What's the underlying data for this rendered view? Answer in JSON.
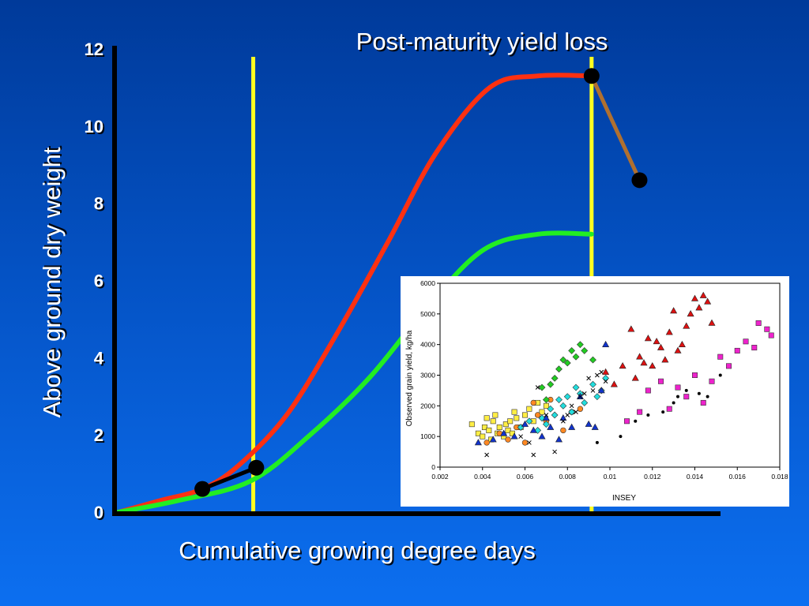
{
  "slide": {
    "title": "Post-maturity yield loss",
    "xlabel": "Cumulative growing degree days",
    "ylabel": "Above ground dry weight"
  },
  "colors": {
    "red_curve": "#ff3010",
    "green_curve": "#22ee22",
    "yellow_line": "#ffff20",
    "loss_line": "#b07030",
    "axis": "#000000",
    "text": "#ffffff"
  },
  "chart_data": [
    {
      "type": "line",
      "title": "Post-maturity yield loss",
      "xlabel": "Cumulative growing degree days",
      "ylabel": "Above ground dry weight",
      "ylim": [
        0,
        12
      ],
      "yticks": [
        0,
        2,
        4,
        6,
        8,
        10,
        12
      ],
      "xlim": [
        0,
        100
      ],
      "grid": false,
      "series": [
        {
          "color": "#ff3010",
          "points": [
            [
              0,
              0
            ],
            [
              7,
              0.3
            ],
            [
              14,
              0.6
            ],
            [
              20,
              1.2
            ],
            [
              28,
              2.5
            ],
            [
              36,
              4.5
            ],
            [
              45,
              7.0
            ],
            [
              53,
              9.3
            ],
            [
              62,
              11.0
            ],
            [
              70,
              11.3
            ],
            [
              79,
              11.3
            ]
          ]
        },
        {
          "color": "#22ee22",
          "points": [
            [
              0,
              0
            ],
            [
              10,
              0.3
            ],
            [
              22,
              0.8
            ],
            [
              32,
              2.0
            ],
            [
              42,
              3.5
            ],
            [
              52,
              5.4
            ],
            [
              61,
              6.8
            ],
            [
              70,
              7.2
            ],
            [
              79,
              7.2
            ]
          ]
        },
        {
          "color": "#b07030",
          "points": [
            [
              79,
              11.3
            ],
            [
              87,
              8.6
            ]
          ]
        },
        {
          "color": "#000000",
          "points": [
            [
              14,
              0.6
            ],
            [
              23,
              1.15
            ]
          ]
        }
      ],
      "vertical_lines_x": [
        22.5,
        79
      ],
      "markers": [
        [
          14,
          0.6
        ],
        [
          23,
          1.15
        ],
        [
          79,
          11.3
        ],
        [
          87,
          8.6
        ]
      ]
    },
    {
      "type": "scatter",
      "xlabel": "INSEY",
      "ylabel": "Observed grain yield, kg/ha",
      "xlim": [
        0.002,
        0.018
      ],
      "ylim": [
        0,
        6000
      ],
      "xticks": [
        "0.002",
        "0.004",
        "0.006",
        "0.008",
        "0.01",
        "0.012",
        "0.014",
        "0.016",
        "0.018"
      ],
      "yticks": [
        "0",
        "1000",
        "2000",
        "3000",
        "4000",
        "5000",
        "6000"
      ],
      "grid": false,
      "series": [
        {
          "marker": "square",
          "color": "#ffee44",
          "points": [
            [
              0.0035,
              1400
            ],
            [
              0.0038,
              1100
            ],
            [
              0.004,
              1000
            ],
            [
              0.0041,
              1300
            ],
            [
              0.0042,
              1600
            ],
            [
              0.0043,
              1200
            ],
            [
              0.0044,
              900
            ],
            [
              0.0045,
              1500
            ],
            [
              0.0046,
              1700
            ],
            [
              0.0047,
              1100
            ],
            [
              0.0048,
              1300
            ],
            [
              0.005,
              1000
            ],
            [
              0.0051,
              1400
            ],
            [
              0.0052,
              1200
            ],
            [
              0.0053,
              1500
            ],
            [
              0.0054,
              1100
            ],
            [
              0.0055,
              1800
            ],
            [
              0.0056,
              1600
            ],
            [
              0.0058,
              1300
            ],
            [
              0.006,
              1700
            ],
            [
              0.0062,
              1900
            ],
            [
              0.0064,
              1500
            ],
            [
              0.0066,
              2100
            ],
            [
              0.0068,
              1800
            ],
            [
              0.007,
              2000
            ]
          ]
        },
        {
          "marker": "circle",
          "color": "#ff8822",
          "points": [
            [
              0.0042,
              800
            ],
            [
              0.0048,
              1100
            ],
            [
              0.0052,
              900
            ],
            [
              0.0056,
              1300
            ],
            [
              0.006,
              800
            ],
            [
              0.0064,
              2100
            ],
            [
              0.0066,
              1700
            ],
            [
              0.007,
              1500
            ],
            [
              0.0072,
              2200
            ],
            [
              0.0078,
              1200
            ],
            [
              0.0082,
              1800
            ],
            [
              0.0086,
              1900
            ]
          ]
        },
        {
          "marker": "diamond",
          "color": "#22cc22",
          "points": [
            [
              0.0068,
              2600
            ],
            [
              0.007,
              2200
            ],
            [
              0.0072,
              2700
            ],
            [
              0.0074,
              2900
            ],
            [
              0.0076,
              3200
            ],
            [
              0.0078,
              3500
            ],
            [
              0.008,
              3400
            ],
            [
              0.0082,
              3800
            ],
            [
              0.0084,
              3600
            ],
            [
              0.0086,
              4000
            ],
            [
              0.0088,
              3800
            ],
            [
              0.0092,
              3500
            ]
          ]
        },
        {
          "marker": "diamond",
          "color": "#22dddd",
          "points": [
            [
              0.0058,
              1300
            ],
            [
              0.0062,
              1500
            ],
            [
              0.0066,
              1200
            ],
            [
              0.0068,
              1600
            ],
            [
              0.007,
              1400
            ],
            [
              0.0072,
              1900
            ],
            [
              0.0074,
              1700
            ],
            [
              0.0076,
              2200
            ],
            [
              0.0078,
              2000
            ],
            [
              0.008,
              2300
            ],
            [
              0.0082,
              1800
            ],
            [
              0.0084,
              2600
            ],
            [
              0.0086,
              2400
            ],
            [
              0.0088,
              2100
            ],
            [
              0.0092,
              2700
            ],
            [
              0.0094,
              2300
            ],
            [
              0.0096,
              2500
            ],
            [
              0.0098,
              2900
            ]
          ]
        },
        {
          "marker": "triangle",
          "color": "#1133cc",
          "points": [
            [
              0.0038,
              800
            ],
            [
              0.0045,
              900
            ],
            [
              0.005,
              1100
            ],
            [
              0.0055,
              1000
            ],
            [
              0.006,
              1400
            ],
            [
              0.0064,
              1200
            ],
            [
              0.0068,
              1000
            ],
            [
              0.007,
              1600
            ],
            [
              0.0072,
              1300
            ],
            [
              0.0076,
              900
            ],
            [
              0.0078,
              1600
            ],
            [
              0.0082,
              1300
            ],
            [
              0.0086,
              2300
            ],
            [
              0.009,
              1400
            ],
            [
              0.0093,
              1300
            ],
            [
              0.0096,
              2500
            ],
            [
              0.0098,
              4000
            ]
          ]
        },
        {
          "marker": "x",
          "color": "#000000",
          "points": [
            [
              0.0042,
              400
            ],
            [
              0.0058,
              1000
            ],
            [
              0.0062,
              800
            ],
            [
              0.0064,
              400
            ],
            [
              0.0066,
              2600
            ],
            [
              0.007,
              1700
            ],
            [
              0.0074,
              500
            ],
            [
              0.0078,
              1500
            ],
            [
              0.008,
              1700
            ],
            [
              0.0082,
              2000
            ],
            [
              0.0084,
              1800
            ],
            [
              0.0086,
              2300
            ],
            [
              0.0088,
              2400
            ],
            [
              0.009,
              2900
            ],
            [
              0.0092,
              2500
            ],
            [
              0.0094,
              3000
            ],
            [
              0.0096,
              3100
            ],
            [
              0.0098,
              2800
            ]
          ]
        },
        {
          "marker": "dot",
          "color": "#000000",
          "points": [
            [
              0.0094,
              800
            ],
            [
              0.0105,
              1000
            ],
            [
              0.0112,
              1500
            ],
            [
              0.0118,
              1700
            ],
            [
              0.0125,
              1800
            ],
            [
              0.013,
              2100
            ],
            [
              0.0132,
              2300
            ],
            [
              0.0136,
              2500
            ],
            [
              0.0142,
              2400
            ],
            [
              0.0146,
              2300
            ],
            [
              0.0152,
              3000
            ]
          ]
        },
        {
          "marker": "triangle",
          "color": "#dd1111",
          "points": [
            [
              0.0098,
              3100
            ],
            [
              0.0102,
              2700
            ],
            [
              0.0106,
              3300
            ],
            [
              0.011,
              4500
            ],
            [
              0.0112,
              2900
            ],
            [
              0.0114,
              3600
            ],
            [
              0.0116,
              3400
            ],
            [
              0.0118,
              4200
            ],
            [
              0.012,
              3300
            ],
            [
              0.0122,
              4100
            ],
            [
              0.0124,
              3900
            ],
            [
              0.0126,
              3500
            ],
            [
              0.0128,
              4400
            ],
            [
              0.013,
              5100
            ],
            [
              0.0132,
              3800
            ],
            [
              0.0134,
              4000
            ],
            [
              0.0136,
              4600
            ],
            [
              0.0138,
              5000
            ],
            [
              0.014,
              5500
            ],
            [
              0.0142,
              5200
            ],
            [
              0.0144,
              5600
            ],
            [
              0.0146,
              5400
            ],
            [
              0.0148,
              4700
            ]
          ]
        },
        {
          "marker": "square",
          "color": "#ee22cc",
          "points": [
            [
              0.0108,
              1500
            ],
            [
              0.0114,
              1800
            ],
            [
              0.0118,
              2500
            ],
            [
              0.0124,
              2800
            ],
            [
              0.0128,
              1900
            ],
            [
              0.0132,
              2600
            ],
            [
              0.0136,
              2300
            ],
            [
              0.014,
              3000
            ],
            [
              0.0144,
              2100
            ],
            [
              0.0148,
              2800
            ],
            [
              0.0152,
              3600
            ],
            [
              0.0156,
              3300
            ],
            [
              0.016,
              3800
            ],
            [
              0.0164,
              4100
            ],
            [
              0.0168,
              3900
            ],
            [
              0.017,
              4700
            ],
            [
              0.0174,
              4500
            ],
            [
              0.0176,
              4300
            ]
          ]
        }
      ]
    }
  ]
}
